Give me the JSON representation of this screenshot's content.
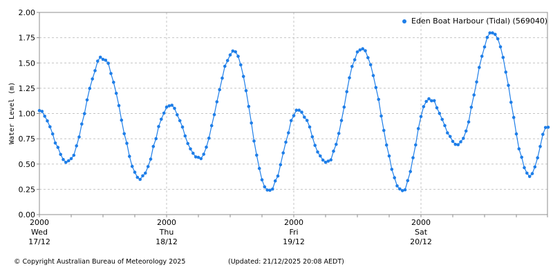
{
  "chart_data": {
    "type": "line",
    "title": "",
    "xlabel": "",
    "ylabel": "Water Level (m)",
    "ylim": [
      0,
      2.0
    ],
    "yticks": [
      "0.00",
      "0.25",
      "0.50",
      "0.75",
      "1.00",
      "1.25",
      "1.50",
      "1.75",
      "2.00"
    ],
    "xlim_hours_from_start": [
      0,
      96
    ],
    "x_major_ticks": [
      {
        "time": "2000",
        "day": "Wed",
        "date": "17/12"
      },
      {
        "time": "2000",
        "day": "Thu",
        "date": "18/12"
      },
      {
        "time": "2000",
        "day": "Fri",
        "date": "19/12"
      },
      {
        "time": "2000",
        "day": "Sat",
        "date": "20/12"
      }
    ],
    "x_minor_tick_interval_hours": 6,
    "grid": true,
    "legend_position": "top-right",
    "series": [
      {
        "name": "Eden Boat Harbour  (Tidal) (569040)",
        "color": "#1e7ee8",
        "marker": "dot",
        "extremes_hours": [
          0,
          5.3,
          11.9,
          19.0,
          24.6,
          30.1,
          36.6,
          43.3,
          48.9,
          54.2,
          60.8,
          68.5,
          73.5,
          79.0,
          85.5,
          92.6,
          96.0
        ],
        "extremes_values": [
          1.03,
          0.52,
          1.55,
          0.36,
          1.08,
          0.55,
          1.61,
          0.23,
          1.03,
          0.51,
          1.65,
          0.24,
          1.15,
          0.69,
          1.8,
          0.38,
          0.88
        ]
      }
    ]
  },
  "legend": {
    "label": "Eden Boat Harbour  (Tidal) (569040)"
  },
  "y_axis": {
    "title": "Water Level (m)"
  },
  "x_axis": {
    "labels": [
      {
        "time": "2000",
        "day": "Wed",
        "date": "17/12"
      },
      {
        "time": "2000",
        "day": "Thu",
        "date": "18/12"
      },
      {
        "time": "2000",
        "day": "Fri",
        "date": "19/12"
      },
      {
        "time": "2000",
        "day": "Sat",
        "date": "20/12"
      }
    ]
  },
  "footer": {
    "copyright": "© Copyright Australian Bureau of Meteorology 2025",
    "updated": "(Updated: 21/12/2025 20:08 AEDT)"
  }
}
